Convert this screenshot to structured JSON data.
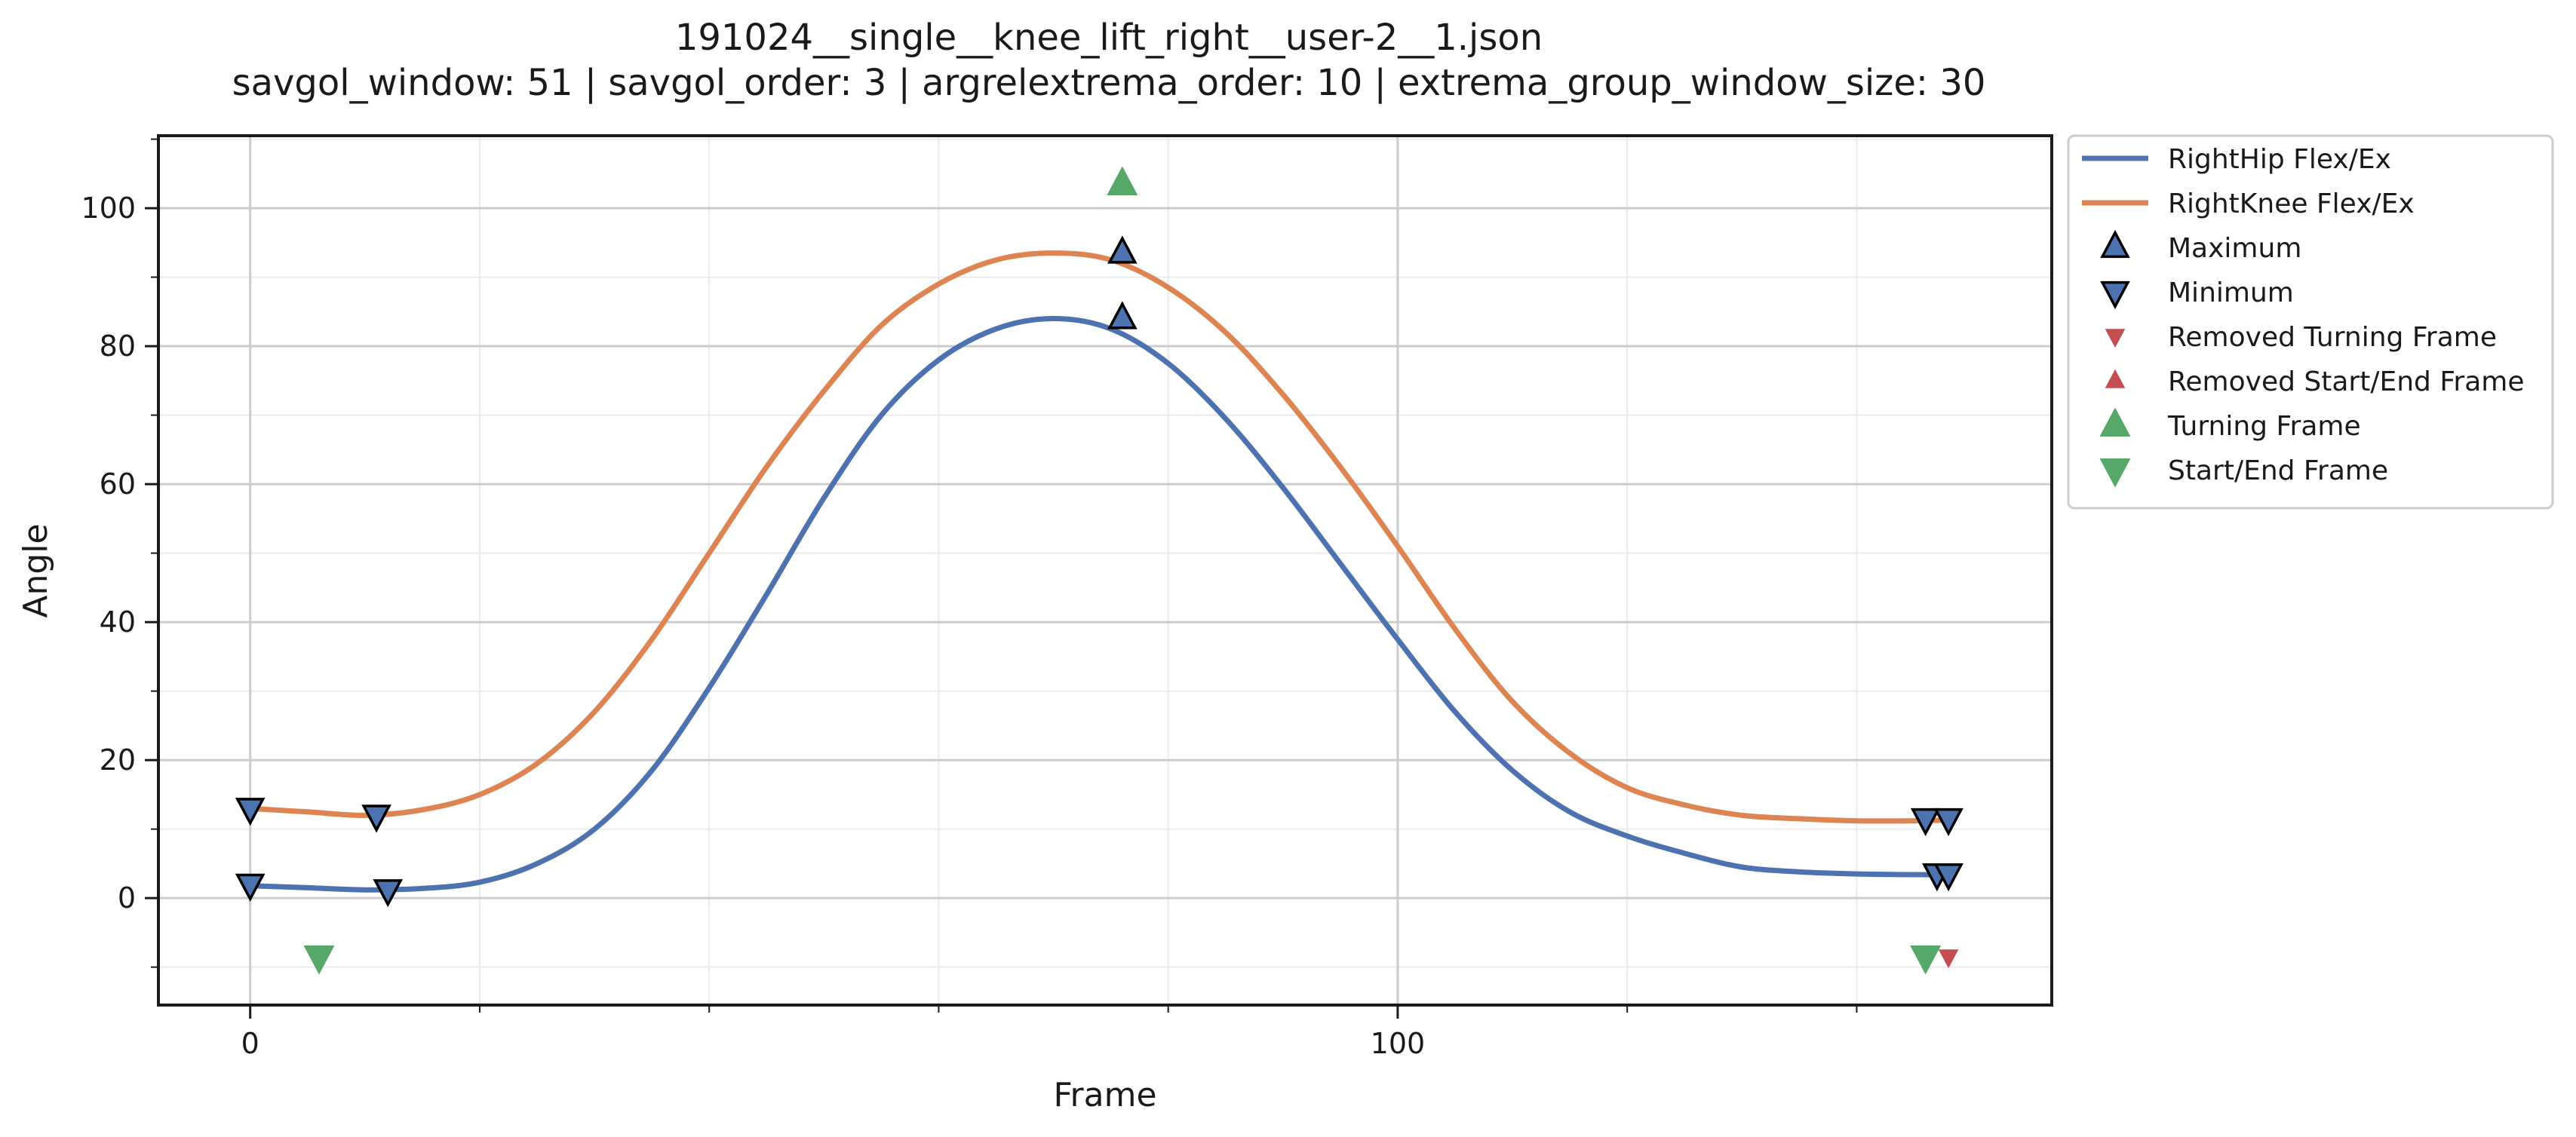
{
  "chart_data": {
    "type": "line",
    "title": "191024__single__knee_lift_right__user-2__1.json",
    "subtitle": "savgol_window: 51  |  savgol_order: 3  |  argrelextrema_order: 10  |  extrema_group_window_size: 30",
    "xlabel": "Frame",
    "ylabel": "Angle",
    "xlim": [
      -8,
      157
    ],
    "ylim": [
      -15.5,
      110.5
    ],
    "x_ticks": [
      0,
      100
    ],
    "x_minor_ticks": [
      20,
      40,
      60,
      80,
      120,
      140
    ],
    "y_ticks": [
      0,
      20,
      40,
      60,
      80,
      100
    ],
    "y_minor_ticks": [
      -10,
      10,
      30,
      50,
      70,
      90,
      110
    ],
    "grid": true,
    "legend_position": "outside-top-right",
    "colors": {
      "hip": "#4c72b0",
      "knee": "#dd8452",
      "marker_face": "#4c72b0",
      "removed": "#c44e52",
      "turning": "#55a868"
    },
    "series": [
      {
        "name": "RightHip Flex/Ex",
        "color": "#4c72b0",
        "points": [
          [
            0,
            1.8
          ],
          [
            5,
            1.5
          ],
          [
            10,
            1.2
          ],
          [
            15,
            1.4
          ],
          [
            20,
            2.3
          ],
          [
            25,
            5
          ],
          [
            30,
            10
          ],
          [
            35,
            18.5
          ],
          [
            40,
            30.5
          ],
          [
            45,
            44
          ],
          [
            50,
            58
          ],
          [
            55,
            70
          ],
          [
            60,
            78
          ],
          [
            65,
            82.5
          ],
          [
            70,
            84
          ],
          [
            75,
            82.5
          ],
          [
            80,
            77.5
          ],
          [
            85,
            69.5
          ],
          [
            90,
            59.5
          ],
          [
            95,
            48.5
          ],
          [
            100,
            37.5
          ],
          [
            105,
            27
          ],
          [
            110,
            18.5
          ],
          [
            115,
            12.5
          ],
          [
            120,
            9
          ],
          [
            125,
            6.5
          ],
          [
            130,
            4.5
          ],
          [
            135,
            3.8
          ],
          [
            140,
            3.5
          ],
          [
            145,
            3.4
          ],
          [
            148,
            3.4
          ]
        ]
      },
      {
        "name": "RightKnee Flex/Ex",
        "color": "#dd8452",
        "points": [
          [
            0,
            13
          ],
          [
            5,
            12.5
          ],
          [
            10,
            12
          ],
          [
            15,
            12.8
          ],
          [
            20,
            15
          ],
          [
            25,
            19.5
          ],
          [
            30,
            27
          ],
          [
            35,
            37.5
          ],
          [
            40,
            50
          ],
          [
            45,
            62.5
          ],
          [
            50,
            73.5
          ],
          [
            55,
            83
          ],
          [
            60,
            89
          ],
          [
            65,
            92.5
          ],
          [
            70,
            93.5
          ],
          [
            75,
            92.5
          ],
          [
            80,
            88.5
          ],
          [
            85,
            82
          ],
          [
            90,
            73
          ],
          [
            95,
            62.5
          ],
          [
            100,
            51
          ],
          [
            105,
            39
          ],
          [
            110,
            28.5
          ],
          [
            115,
            21
          ],
          [
            120,
            16
          ],
          [
            125,
            13.5
          ],
          [
            130,
            12
          ],
          [
            135,
            11.5
          ],
          [
            140,
            11.2
          ],
          [
            145,
            11.2
          ],
          [
            148,
            11.3
          ]
        ]
      }
    ],
    "markers": [
      {
        "name": "Maximum",
        "shape": "triangle-up",
        "color": "#4c72b0",
        "edge": "#000000",
        "size": "medium",
        "points": [
          [
            76,
            93.5
          ],
          [
            76,
            84
          ]
        ]
      },
      {
        "name": "Minimum",
        "shape": "triangle-down",
        "color": "#4c72b0",
        "edge": "#000000",
        "size": "medium",
        "points": [
          [
            0,
            13
          ],
          [
            11,
            12
          ],
          [
            0,
            2
          ],
          [
            12,
            1.2
          ],
          [
            146,
            11.5
          ],
          [
            148,
            11.5
          ],
          [
            147,
            3.5
          ],
          [
            148,
            3.5
          ]
        ]
      },
      {
        "name": "Removed Turning Frame",
        "shape": "triangle-down",
        "color": "#c44e52",
        "edge": "none",
        "size": "small",
        "points": [
          [
            148,
            -8.5
          ]
        ]
      },
      {
        "name": "Removed Start/End Frame",
        "shape": "triangle-up",
        "color": "#c44e52",
        "edge": "none",
        "size": "small",
        "points": []
      },
      {
        "name": "Turning Frame",
        "shape": "triangle-up",
        "color": "#55a868",
        "edge": "none",
        "size": "large",
        "points": [
          [
            76,
            103.5
          ]
        ]
      },
      {
        "name": "Start/End Frame",
        "shape": "triangle-down",
        "color": "#55a868",
        "edge": "none",
        "size": "large",
        "points": [
          [
            6,
            -8.5
          ],
          [
            146,
            -8.5
          ]
        ]
      }
    ],
    "legend": [
      {
        "label": "RightHip Flex/Ex",
        "kind": "line",
        "ref": "hip"
      },
      {
        "label": "RightKnee Flex/Ex",
        "kind": "line",
        "ref": "knee"
      },
      {
        "label": "Maximum",
        "kind": "marker",
        "ref": "Maximum"
      },
      {
        "label": "Minimum",
        "kind": "marker",
        "ref": "Minimum"
      },
      {
        "label": "Removed Turning Frame",
        "kind": "marker",
        "ref": "Removed Turning Frame"
      },
      {
        "label": "Removed Start/End Frame",
        "kind": "marker",
        "ref": "Removed Start/End Frame"
      },
      {
        "label": "Turning Frame",
        "kind": "marker",
        "ref": "Turning Frame"
      },
      {
        "label": "Start/End Frame",
        "kind": "marker",
        "ref": "Start/End Frame"
      }
    ]
  }
}
